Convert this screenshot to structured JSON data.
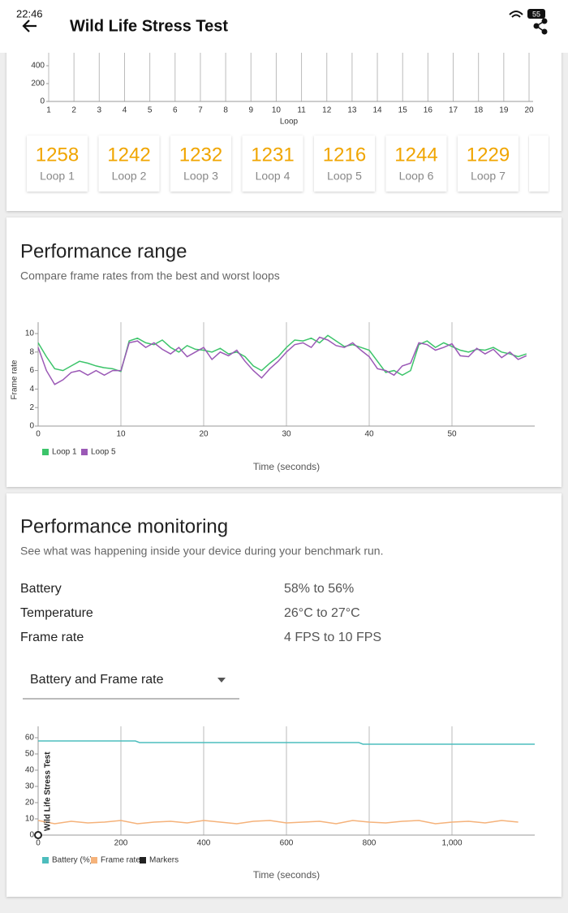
{
  "status_bar": {
    "time": "22:46",
    "battery": "55"
  },
  "app_bar": {
    "title": "Wild Life Stress Test"
  },
  "score_chart": {
    "type": "grid",
    "x_label": "Loop",
    "xlim": [
      1,
      20
    ],
    "xticks": [
      1,
      2,
      3,
      4,
      5,
      6,
      7,
      8,
      9,
      10,
      11,
      12,
      13,
      14,
      15,
      16,
      17,
      18,
      19,
      20
    ],
    "ylim": [
      0,
      400
    ],
    "yticks": [
      0,
      200,
      400
    ]
  },
  "loop_scores": [
    {
      "score": 1258,
      "label": "Loop 1"
    },
    {
      "score": 1242,
      "label": "Loop 2"
    },
    {
      "score": 1232,
      "label": "Loop 3"
    },
    {
      "score": 1231,
      "label": "Loop 4"
    },
    {
      "score": 1216,
      "label": "Loop 5"
    },
    {
      "score": 1244,
      "label": "Loop 6"
    },
    {
      "score": 1229,
      "label": "Loop 7"
    }
  ],
  "performance_range": {
    "title": "Performance range",
    "subtitle": "Compare frame rates from the best and worst loops",
    "chart": {
      "type": "line",
      "y_label": "Frame rate",
      "x_label": "Time (seconds)",
      "xlim": [
        0,
        60
      ],
      "xticks": [
        0,
        10,
        20,
        30,
        40,
        50
      ],
      "ylim": [
        0,
        10
      ],
      "yticks": [
        0,
        2,
        4,
        6,
        8,
        10
      ],
      "x": [
        0,
        1,
        2,
        3,
        4,
        5,
        6,
        7,
        8,
        9,
        10,
        11,
        12,
        13,
        14,
        15,
        16,
        17,
        18,
        19,
        20,
        21,
        22,
        23,
        24,
        25,
        26,
        27,
        28,
        29,
        30,
        31,
        32,
        33,
        34,
        35,
        36,
        37,
        38,
        39,
        40,
        41,
        42,
        43,
        44,
        45,
        46,
        47,
        48,
        49,
        50,
        51,
        52,
        53,
        54,
        55,
        56,
        57,
        58,
        59
      ],
      "series": [
        {
          "name": "Loop 1",
          "color": "#3cc46a",
          "values": [
            9,
            7.5,
            6.2,
            6,
            6.5,
            7,
            6.8,
            6.5,
            6.3,
            6.2,
            5.9,
            9.2,
            9.5,
            9,
            8.8,
            9.3,
            8.5,
            8,
            8.7,
            8.3,
            8.2,
            8,
            8.4,
            7.8,
            8,
            7.5,
            6.5,
            6,
            6.8,
            7.5,
            8.5,
            9.3,
            9.2,
            9.5,
            9,
            9.8,
            9.2,
            8.6,
            8.8,
            8.5,
            8.2,
            7,
            5.8,
            6,
            5.5,
            6,
            8.8,
            9.2,
            8.5,
            9,
            8.6,
            8.2,
            8,
            8.3,
            8.2,
            8.5,
            8,
            7.8,
            7.5,
            7.8
          ]
        },
        {
          "name": "Loop 5",
          "color": "#9b59b6",
          "values": [
            8.5,
            6,
            4.5,
            5,
            5.8,
            6,
            5.5,
            6,
            5.5,
            6,
            6,
            9,
            9.2,
            8.5,
            9,
            8.3,
            7.8,
            8.5,
            7.5,
            8,
            8.5,
            7.2,
            8,
            7.6,
            8.2,
            7,
            6,
            5.2,
            6.2,
            7,
            8,
            8.8,
            9,
            8.5,
            9.6,
            9.3,
            8.7,
            8.5,
            9,
            8.2,
            7.5,
            6.2,
            6,
            5.5,
            6.5,
            6.8,
            9,
            8.8,
            8.2,
            8.5,
            8.9,
            7.6,
            7.5,
            8.4,
            7.8,
            8.3,
            7.4,
            8,
            7.2,
            7.6
          ]
        }
      ]
    }
  },
  "performance_monitoring": {
    "title": "Performance monitoring",
    "subtitle": "See what was happening inside your device during your benchmark run.",
    "rows": [
      [
        "Battery",
        "58% to 56%"
      ],
      [
        "Temperature",
        "26°C to 27°C"
      ],
      [
        "Frame rate",
        "4 FPS to 10 FPS"
      ]
    ],
    "dropdown": "Battery and Frame rate",
    "chart": {
      "type": "line",
      "x_label": "Time (seconds)",
      "xlim": [
        0,
        1200
      ],
      "xticks": [
        0,
        200,
        400,
        600,
        800,
        {
          "value": 1000,
          "label": "1,000"
        }
      ],
      "ylim": [
        0,
        60
      ],
      "yticks": [
        0,
        10,
        20,
        30,
        40,
        50,
        60
      ],
      "series": [
        {
          "name": "Battery (%)",
          "color": "#4dbdbd",
          "x": [
            0,
            235,
            245,
            775,
            785,
            1200
          ],
          "values": [
            58,
            58,
            57,
            57,
            56,
            56
          ]
        },
        {
          "name": "Frame rate",
          "color": "#f5b27a",
          "x": [
            0,
            40,
            80,
            120,
            160,
            200,
            240,
            280,
            320,
            360,
            400,
            440,
            480,
            520,
            560,
            600,
            640,
            680,
            720,
            760,
            800,
            840,
            880,
            920,
            960,
            1000,
            1040,
            1080,
            1120,
            1160
          ],
          "values": [
            9,
            7,
            8.5,
            7.5,
            8,
            9,
            7,
            8,
            8.5,
            7.5,
            9,
            8,
            7,
            8.5,
            9,
            7.5,
            8,
            8.5,
            7,
            9,
            8,
            7.5,
            8.5,
            9,
            7,
            8,
            8.5,
            7.5,
            9,
            8
          ]
        }
      ],
      "markers": {
        "name": "Markers",
        "color": "#222222",
        "items": [
          {
            "x": 0,
            "label": "Wild Life Stress Test"
          }
        ]
      }
    }
  }
}
